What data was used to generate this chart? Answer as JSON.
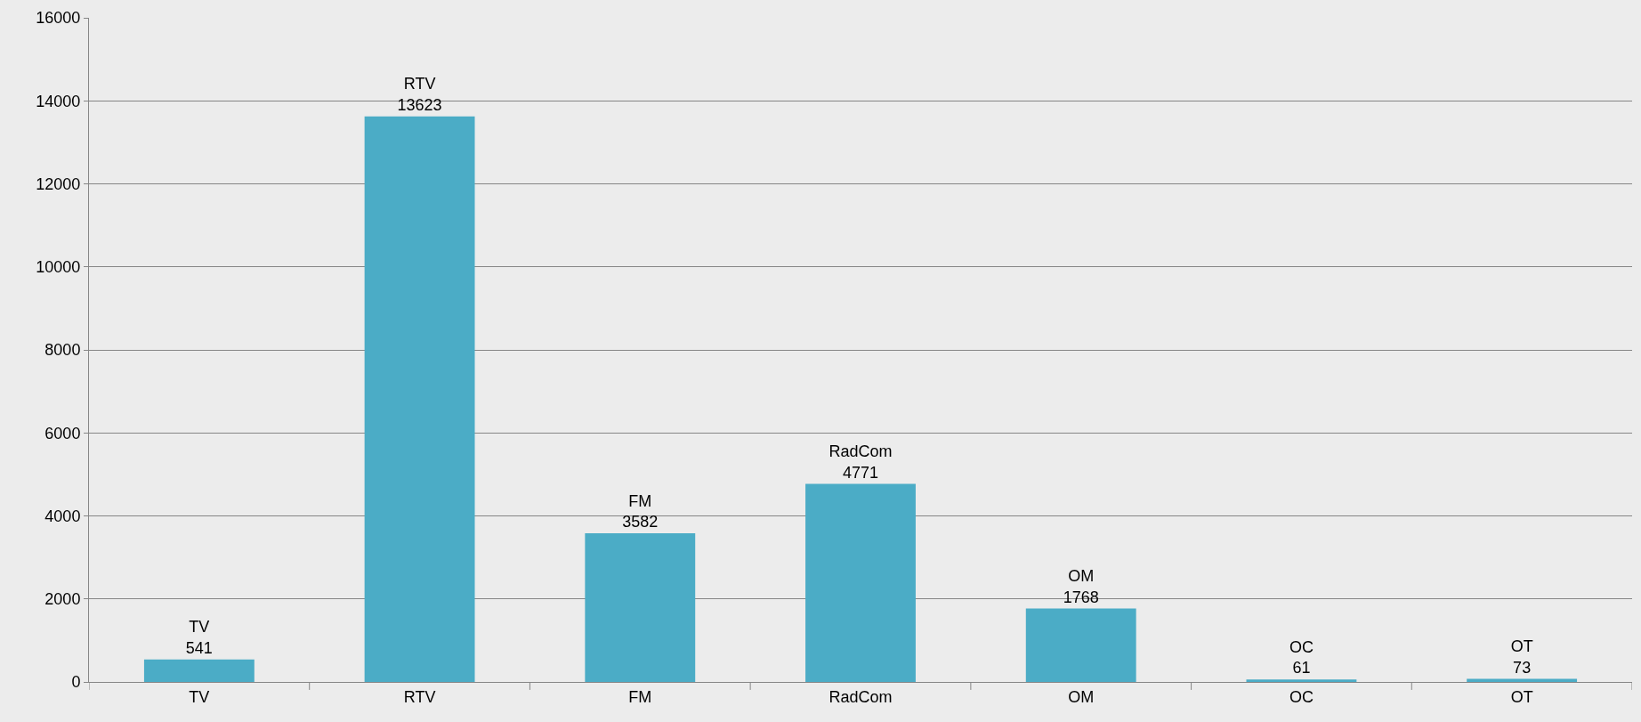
{
  "chart_data": {
    "type": "bar",
    "categories": [
      "TV",
      "RTV",
      "FM",
      "RadCom",
      "OM",
      "OC",
      "OT"
    ],
    "values": [
      541,
      13623,
      3582,
      4771,
      1768,
      61,
      73
    ],
    "color": "#4bacc6",
    "ylim": [
      0,
      16000
    ],
    "yticks": [
      0,
      2000,
      4000,
      6000,
      8000,
      10000,
      12000,
      14000,
      16000
    ],
    "grid": "y",
    "data_labels": true
  }
}
